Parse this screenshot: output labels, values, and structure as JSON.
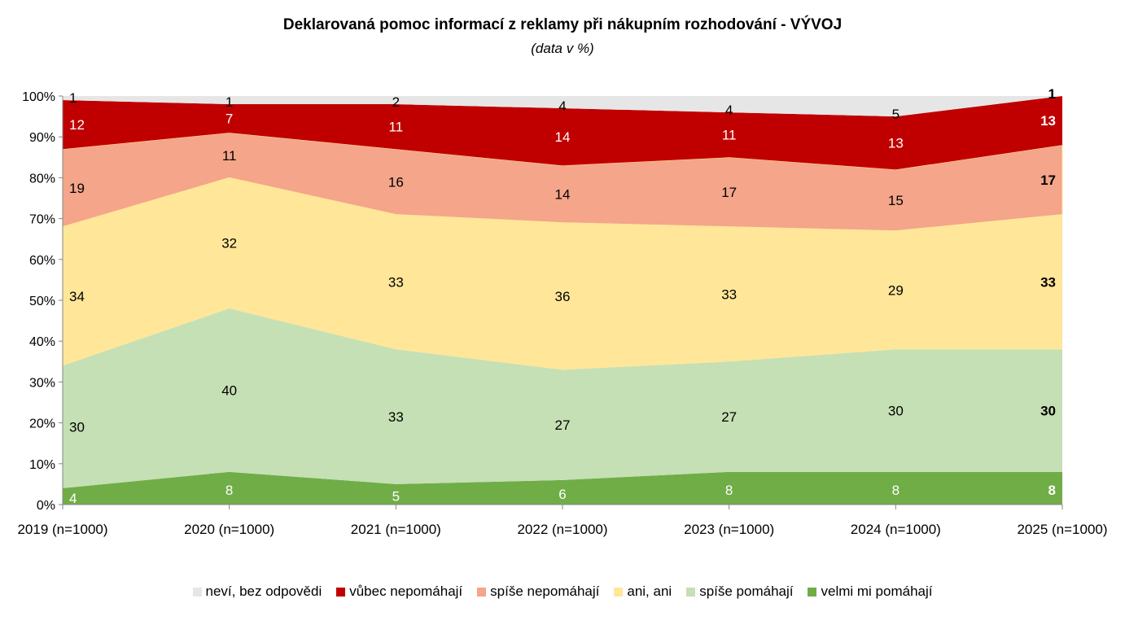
{
  "chart_data": {
    "type": "area",
    "stacked": "percent",
    "title": "Deklarovaná pomoc informací z reklamy při nákupním rozhodování - VÝVOJ",
    "subtitle": "(data v %)",
    "categories": [
      "2019 (n=1000)",
      "2020 (n=1000)",
      "2021 (n=1000)",
      "2022 (n=1000)",
      "2023 (n=1000)",
      "2024 (n=1000)",
      "2025 (n=1000)"
    ],
    "yticks": [
      "0%",
      "10%",
      "20%",
      "30%",
      "40%",
      "50%",
      "60%",
      "70%",
      "80%",
      "90%",
      "100%"
    ],
    "ylim": [
      0,
      100
    ],
    "legend_position": "bottom",
    "series": [
      {
        "name": "velmi mi pomáhají",
        "color": "#70ad47",
        "label_color": "#ffffff",
        "values": [
          4,
          8,
          5,
          6,
          8,
          8,
          8
        ]
      },
      {
        "name": "spíše pomáhají",
        "color": "#c5e0b4",
        "label_color": "#000000",
        "values": [
          30,
          40,
          33,
          27,
          27,
          30,
          30
        ]
      },
      {
        "name": "ani, ani",
        "color": "#ffe699",
        "label_color": "#000000",
        "values": [
          34,
          32,
          33,
          36,
          33,
          29,
          33
        ]
      },
      {
        "name": "spíše nepomáhají",
        "color": "#f4a58a",
        "label_color": "#000000",
        "values": [
          19,
          11,
          16,
          14,
          17,
          15,
          17
        ]
      },
      {
        "name": "vůbec nepomáhají",
        "color": "#c00000",
        "label_color": "#ffffff",
        "values": [
          12,
          7,
          11,
          14,
          11,
          13,
          13
        ]
      },
      {
        "name": "neví, bez odpovědi",
        "color": "#e7e6e6",
        "label_color": "#000000",
        "values": [
          1,
          1,
          2,
          4,
          4,
          5,
          1
        ]
      }
    ],
    "legend_order": [
      5,
      4,
      3,
      2,
      1,
      0
    ]
  }
}
